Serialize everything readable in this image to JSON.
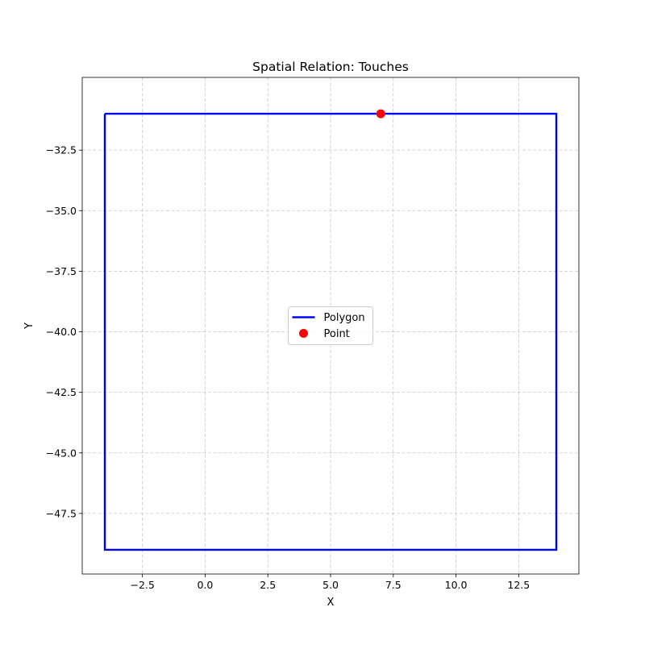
{
  "chart_data": {
    "type": "scatter",
    "title": "Spatial Relation: Touches",
    "xlabel": "X",
    "ylabel": "Y",
    "xlim": [
      -4.9,
      14.9
    ],
    "ylim": [
      -50.0,
      -29.5
    ],
    "xticks": [
      -2.5,
      0.0,
      2.5,
      5.0,
      7.5,
      10.0,
      12.5
    ],
    "xtick_labels": [
      "−2.5",
      "0.0",
      "2.5",
      "5.0",
      "7.5",
      "10.0",
      "12.5"
    ],
    "yticks": [
      -32.5,
      -35.0,
      -37.5,
      -40.0,
      -42.5,
      -45.0,
      -47.5
    ],
    "ytick_labels": [
      "−32.5",
      "−35.0",
      "−37.5",
      "−40.0",
      "−42.5",
      "−45.0",
      "−47.5"
    ],
    "grid": true,
    "legend_position": "center",
    "series": [
      {
        "name": "Polygon",
        "kind": "line",
        "color": "#0000ff",
        "points": [
          [
            -4,
            -31
          ],
          [
            14,
            -31
          ],
          [
            14,
            -49
          ],
          [
            -4,
            -49
          ],
          [
            -4,
            -31
          ]
        ]
      },
      {
        "name": "Point",
        "kind": "scatter",
        "color": "#ff0000",
        "points": [
          [
            7,
            -31
          ]
        ]
      }
    ]
  }
}
